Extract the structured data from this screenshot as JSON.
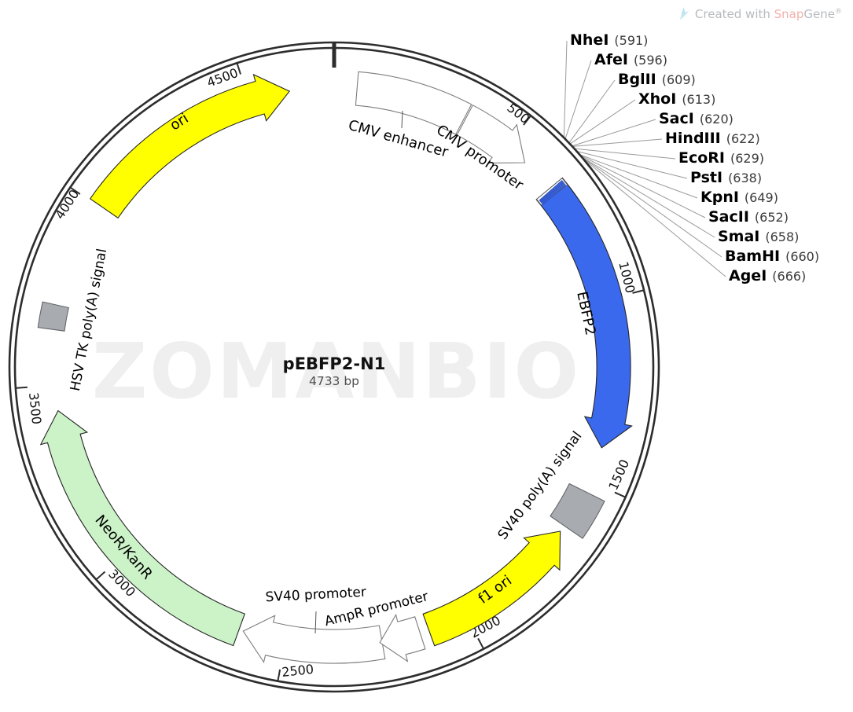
{
  "credit": {
    "prefix": "Created with ",
    "brand_snap": "Snap",
    "brand_gene": "Gene",
    "registered": "®"
  },
  "watermark": "ZOMANBIO",
  "plasmid": {
    "name": "pEBFP2-N1",
    "size": "4733 bp"
  },
  "colors": {
    "ring": "#2d2d2d",
    "white_feature": "#ffffff",
    "blue_feature": "#3b69ee",
    "yellow_feature": "#ffff00",
    "green_feature": "#ccf3c8",
    "gray_feature": "#a8abb0",
    "watermark": "#efefef"
  },
  "ticks": [
    {
      "label": "500"
    },
    {
      "label": "1000"
    },
    {
      "label": "1500"
    },
    {
      "label": "2000"
    },
    {
      "label": "2500"
    },
    {
      "label": "3000"
    },
    {
      "label": "3500"
    },
    {
      "label": "4000"
    },
    {
      "label": "4500"
    }
  ],
  "enzymes": [
    {
      "name": "NheI",
      "position": "(591)"
    },
    {
      "name": "AfeI",
      "position": "(596)"
    },
    {
      "name": "BglII",
      "position": "(609)"
    },
    {
      "name": "XhoI",
      "position": "(613)"
    },
    {
      "name": "SacI",
      "position": "(620)"
    },
    {
      "name": "HindIII",
      "position": "(622)"
    },
    {
      "name": "EcoRI",
      "position": "(629)"
    },
    {
      "name": "PstI",
      "position": "(638)"
    },
    {
      "name": "KpnI",
      "position": "(649)"
    },
    {
      "name": "SacII",
      "position": "(652)"
    },
    {
      "name": "SmaI",
      "position": "(658)"
    },
    {
      "name": "BamHI",
      "position": "(660)"
    },
    {
      "name": "AgeI",
      "position": "(666)"
    }
  ],
  "features": [
    {
      "id": "cmv-enhancer",
      "label": "CMV enhancer",
      "color": "#ffffff"
    },
    {
      "id": "cmv-promoter",
      "label": "CMV promoter",
      "color": "#ffffff"
    },
    {
      "id": "ebfp2",
      "label": "EBFP2",
      "color": "#3b69ee"
    },
    {
      "id": "sv40-polya",
      "label": "SV40 poly(A) signal",
      "color": "#a8abb0"
    },
    {
      "id": "f1-ori",
      "label": "f1 ori",
      "color": "#ffff00"
    },
    {
      "id": "ampr-promoter",
      "label": "AmpR promoter",
      "color": "#ffffff"
    },
    {
      "id": "sv40-promoter",
      "label": "SV40 promoter",
      "color": "#ffffff"
    },
    {
      "id": "neor-kanr",
      "label": "NeoR/KanR",
      "color": "#ccf3c8"
    },
    {
      "id": "hsvtk-polya",
      "label": "HSV TK poly(A) signal",
      "color": "#a8abb0"
    },
    {
      "id": "ori",
      "label": "ori",
      "color": "#ffff00"
    }
  ]
}
